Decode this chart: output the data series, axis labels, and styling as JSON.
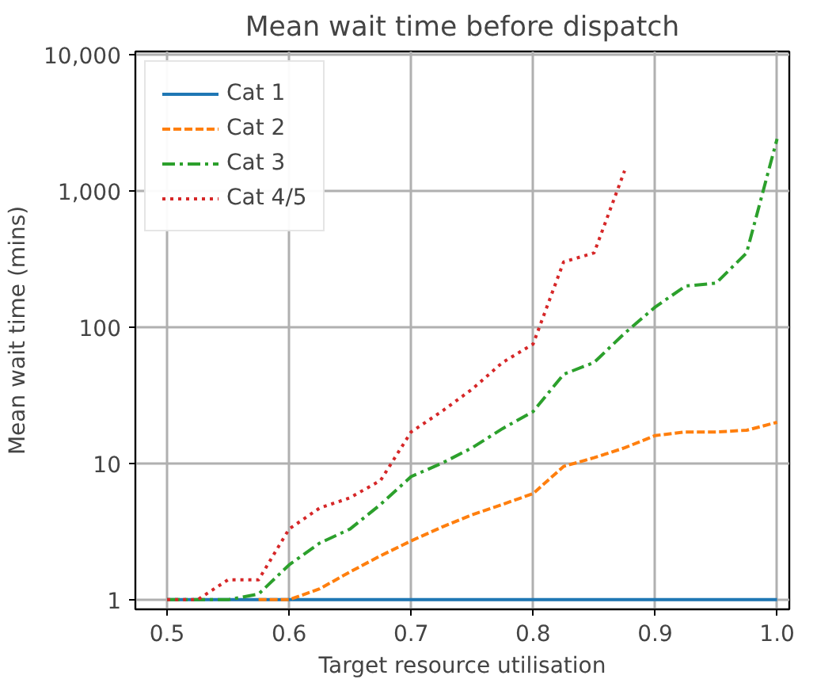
{
  "chart_data": {
    "type": "line",
    "title": "Mean wait time before dispatch",
    "xlabel": "Target resource utilisation",
    "ylabel": "Mean wait time (mins)",
    "log": "y",
    "grid": true,
    "legend": "top left",
    "xlim": [
      0.474,
      1.01
    ],
    "xticks": [
      0.5,
      0.6,
      0.7,
      0.8,
      0.9,
      {
        "value": 1,
        "label": "1.0"
      }
    ],
    "ylim": [
      0.85,
      10500
    ],
    "yticks": [
      {
        "value": 1,
        "label": "1"
      },
      {
        "value": 10,
        "label": "10"
      },
      {
        "value": 100,
        "label": "100"
      },
      {
        "value": 1000,
        "label": "1,000"
      },
      {
        "value": 10000,
        "label": "10,000"
      }
    ],
    "series": [
      {
        "name": "Cat 1",
        "color": "#1f77b4",
        "line_style": "solid",
        "x": [
          0.5,
          1.0
        ],
        "values": [
          1,
          1
        ]
      },
      {
        "name": "Cat 2",
        "color": "#ff7f0e",
        "line_style": "dashed",
        "x": [
          0.575,
          0.6,
          0.625,
          0.65,
          0.675,
          0.7,
          0.725,
          0.75,
          0.775,
          0.8,
          0.825,
          0.85,
          0.875,
          0.9,
          0.925,
          0.95,
          0.975,
          1.0
        ],
        "values": [
          1,
          1,
          1.2,
          1.6,
          2.1,
          2.7,
          3.4,
          4.2,
          5.0,
          6,
          9.5,
          11,
          13,
          16,
          17,
          17,
          17.5,
          20
        ]
      },
      {
        "name": "Cat 3",
        "color": "#2ca02c",
        "line_style": "dashdot",
        "x": [
          0.5,
          0.525,
          0.55,
          0.575,
          0.6,
          0.625,
          0.65,
          0.675,
          0.7,
          0.725,
          0.75,
          0.775,
          0.8,
          0.825,
          0.85,
          0.875,
          0.9,
          0.925,
          0.95,
          0.975,
          1.0
        ],
        "values": [
          1,
          1,
          1,
          1.1,
          1.8,
          2.6,
          3.3,
          5,
          8,
          10,
          13,
          18,
          24,
          45,
          55,
          90,
          140,
          200,
          210,
          350,
          2400
        ]
      },
      {
        "name": "Cat 4/5",
        "color": "#d62728",
        "line_style": "dotted",
        "x": [
          0.5,
          0.525,
          0.55,
          0.575,
          0.6,
          0.625,
          0.65,
          0.675,
          0.7,
          0.725,
          0.75,
          0.775,
          0.8,
          0.825,
          0.85,
          0.875
        ],
        "values": [
          1,
          1,
          1.4,
          1.4,
          3.3,
          4.7,
          5.6,
          7.5,
          17,
          24,
          35,
          55,
          75,
          300,
          350,
          1400
        ]
      }
    ]
  }
}
